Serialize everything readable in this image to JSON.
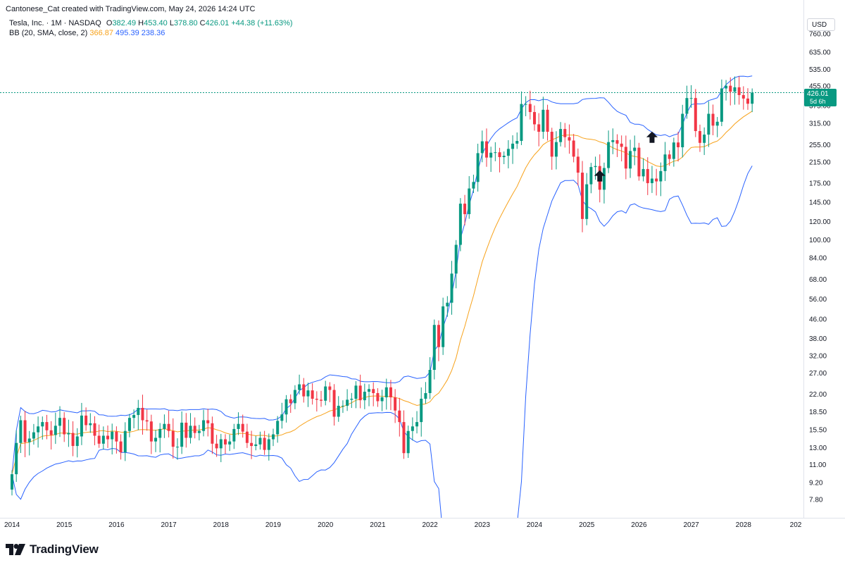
{
  "header": {
    "credit": "Cantonese_Cat created with TradingView.com, May 24, 2026 14:24 UTC"
  },
  "legend": {
    "symbol": "Tesla, Inc. · 1M · NASDAQ",
    "o_label": "O",
    "o_value": "382.49",
    "h_label": "H",
    "h_value": "453.40",
    "l_label": "L",
    "l_value": "378.80",
    "c_label": "C",
    "c_value": "426.01",
    "change": "+44.38 (+11.63%)",
    "indicator": "BB (20, SMA, close, 2)",
    "bb_basis": "366.87",
    "bb_upper": "495.39",
    "bb_lower": "238.36"
  },
  "currency_button": "USD",
  "price_label": {
    "price": "426.01",
    "countdown": "5d 6h"
  },
  "branding": {
    "name": "TradingView"
  },
  "chart_data": {
    "type": "candlestick",
    "scale": "log",
    "y_ticks": [
      7.8,
      9.2,
      11.0,
      13.0,
      15.5,
      18.5,
      22.0,
      27.0,
      32.0,
      38.0,
      46.0,
      56.0,
      68.0,
      84.0,
      100.0,
      120.0,
      145.0,
      175.0,
      215.0,
      255.0,
      315.0,
      375.0,
      455.0,
      535.0,
      635.0,
      760.0
    ],
    "x_ticks": [
      "2014",
      "2015",
      "2016",
      "2017",
      "2018",
      "2019",
      "2020",
      "2021",
      "2022",
      "2023",
      "2024",
      "2025",
      "2026",
      "2027",
      "2028",
      "202"
    ],
    "current_price": 426.01,
    "colors": {
      "up": "#089981",
      "down": "#f23645",
      "basis": "#f7a21b",
      "bands": "#2962ff",
      "last": "#089981"
    },
    "annotations": [
      {
        "type": "arrow-up",
        "date": "2025.25",
        "price": 188
      },
      {
        "type": "arrow-up",
        "date": "2026.25",
        "price": 275
      }
    ],
    "candles_close": [
      10.0,
      13.6,
      17.0,
      13.7,
      14.2,
      15.1,
      16.0,
      16.7,
      15.4,
      14.7,
      16.1,
      17.4,
      14.8,
      15.0,
      13.2,
      14.5,
      17.8,
      16.2,
      16.5,
      14.6,
      13.5,
      14.6,
      14.1,
      15.2,
      13.8,
      12.4,
      15.3,
      17.4,
      17.9,
      19.2,
      17.0,
      16.8,
      13.8,
      14.3,
      15.6,
      16.4,
      15.3,
      13.1,
      13.1,
      16.6,
      14.3,
      16.1,
      15.0,
      15.3,
      17.0,
      16.5,
      13.5,
      12.9,
      14.1,
      13.4,
      13.8,
      15.6,
      16.4,
      15.2,
      13.6,
      13.2,
      13.4,
      14.3,
      12.7,
      14.1,
      14.8,
      16.9,
      18.0,
      20.9,
      20.1,
      22.9,
      24.2,
      21.5,
      22.8,
      21.0,
      20.8,
      20.6,
      23.7,
      22.9,
      17.6,
      19.6,
      19.6,
      20.8,
      21.0,
      23.9,
      20.7,
      22.5,
      23.1,
      22.2,
      20.5,
      21.3,
      23.5,
      21.3,
      18.7,
      16.7,
      12.3,
      15.3,
      16.0,
      16.7,
      21.0,
      22.2,
      27.9,
      43.4,
      34.9,
      52.1,
      54.0,
      71.9,
      95.4,
      143.0,
      129.0,
      166.0,
      177.0,
      235.0,
      264.0,
      225.0,
      236.0,
      237.0,
      226.0,
      229.0,
      245.0,
      258.0,
      265.0,
      381.0,
      381.0,
      352.0,
      312.0,
      290.0,
      360.0,
      290.0,
      227.0,
      262.0,
      298.0,
      275.0,
      266.0,
      227.0,
      194.0,
      123.0,
      173.0,
      205.0,
      207.0,
      164.0,
      203.0,
      262.0,
      267.0,
      258.0,
      250.0,
      202.0,
      240.0,
      248.0,
      187.0,
      201.0,
      175.0,
      183.0,
      178.0,
      197.0,
      232.0,
      222.0,
      261.0,
      249.0,
      346.0,
      404.0,
      404.0,
      292.0,
      260.0,
      282.0,
      346.0,
      308.0,
      320.0,
      444.0,
      456.0,
      430.0,
      449.0,
      416.0,
      402.0,
      382.0,
      426.0
    ]
  }
}
